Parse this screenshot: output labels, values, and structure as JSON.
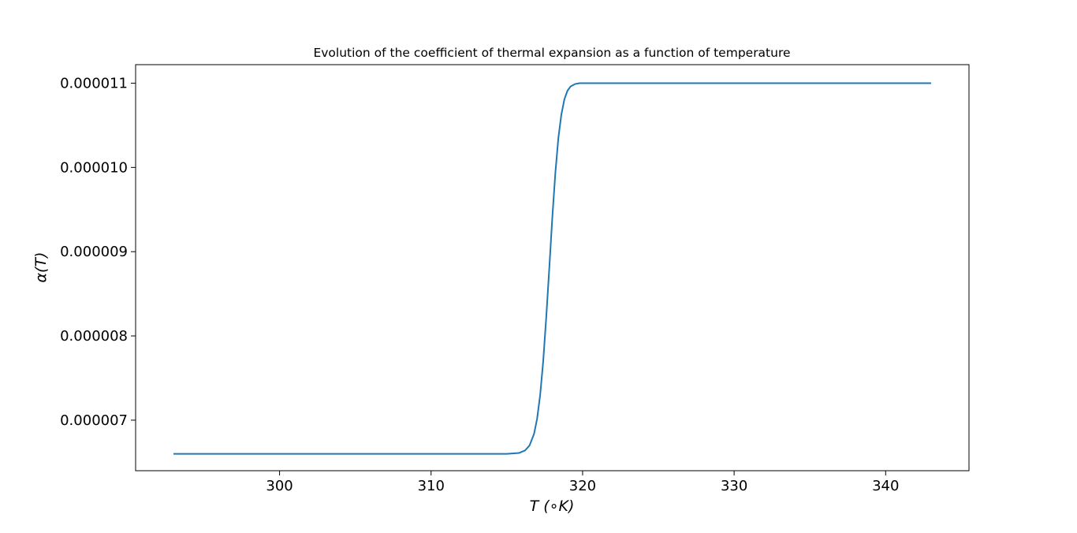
{
  "chart_data": {
    "type": "line",
    "title": "Evolution of the coefficient of thermal expansion as a function of temperature",
    "xlabel": "T (∘K)",
    "ylabel": "α(T)",
    "xlim": [
      290.5,
      345.5
    ],
    "ylim": [
      6.4e-06,
      1.122e-05
    ],
    "x_ticks": [
      300,
      310,
      320,
      330,
      340
    ],
    "x_tick_labels": [
      "300",
      "310",
      "320",
      "330",
      "340"
    ],
    "y_ticks": [
      7e-06,
      8e-06,
      9e-06,
      1e-05,
      1.1e-05
    ],
    "y_tick_labels": [
      "0.000007",
      "0.000008",
      "0.000009",
      "0.000010",
      "0.000011"
    ],
    "grid": false,
    "legend": "none",
    "series": [
      {
        "color": "#1f77b4",
        "x": [
          293,
          300,
          310,
          315,
          315.8,
          316.2,
          316.5,
          316.8,
          317.0,
          317.2,
          317.4,
          317.6,
          317.8,
          318.0,
          318.2,
          318.4,
          318.6,
          318.8,
          319.0,
          319.2,
          319.5,
          319.8,
          320.2,
          321,
          330,
          343
        ],
        "values": [
          6.6e-06,
          6.6e-06,
          6.6e-06,
          6.6e-06,
          6.61e-06,
          6.64e-06,
          6.7e-06,
          6.84e-06,
          7.02e-06,
          7.3e-06,
          7.7e-06,
          8.22e-06,
          8.8e-06,
          9.4e-06,
          9.93e-06,
          1.035e-05,
          1.063e-05,
          1.081e-05,
          1.091e-05,
          1.096e-05,
          1.099e-05,
          1.1e-05,
          1.1e-05,
          1.1e-05,
          1.1e-05,
          1.1e-05
        ]
      }
    ]
  }
}
